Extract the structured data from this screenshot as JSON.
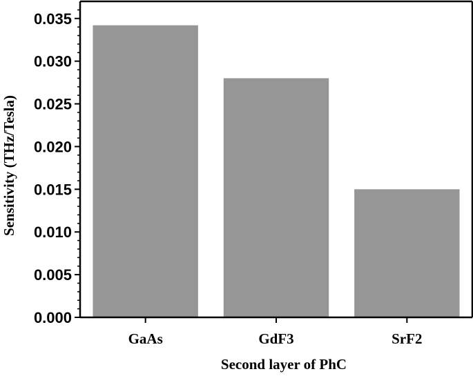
{
  "chart_data": {
    "type": "bar",
    "categories": [
      "GaAs",
      "GdF3",
      "SrF2"
    ],
    "values": [
      0.0342,
      0.028,
      0.015
    ],
    "title": "",
    "xlabel": "Second layer of PhC",
    "ylabel": "Sensitivity (THz/Tesla)",
    "ylim": [
      0,
      0.037
    ],
    "yticks": [
      0.0,
      0.005,
      0.01,
      0.015,
      0.02,
      0.025,
      0.03,
      0.035
    ],
    "ytick_labels": [
      "0.000",
      "0.005",
      "0.010",
      "0.015",
      "0.020",
      "0.025",
      "0.030",
      "0.035"
    ],
    "grid": false,
    "legend": "none",
    "bar_color": "#969696",
    "axis_color": "#000000"
  }
}
